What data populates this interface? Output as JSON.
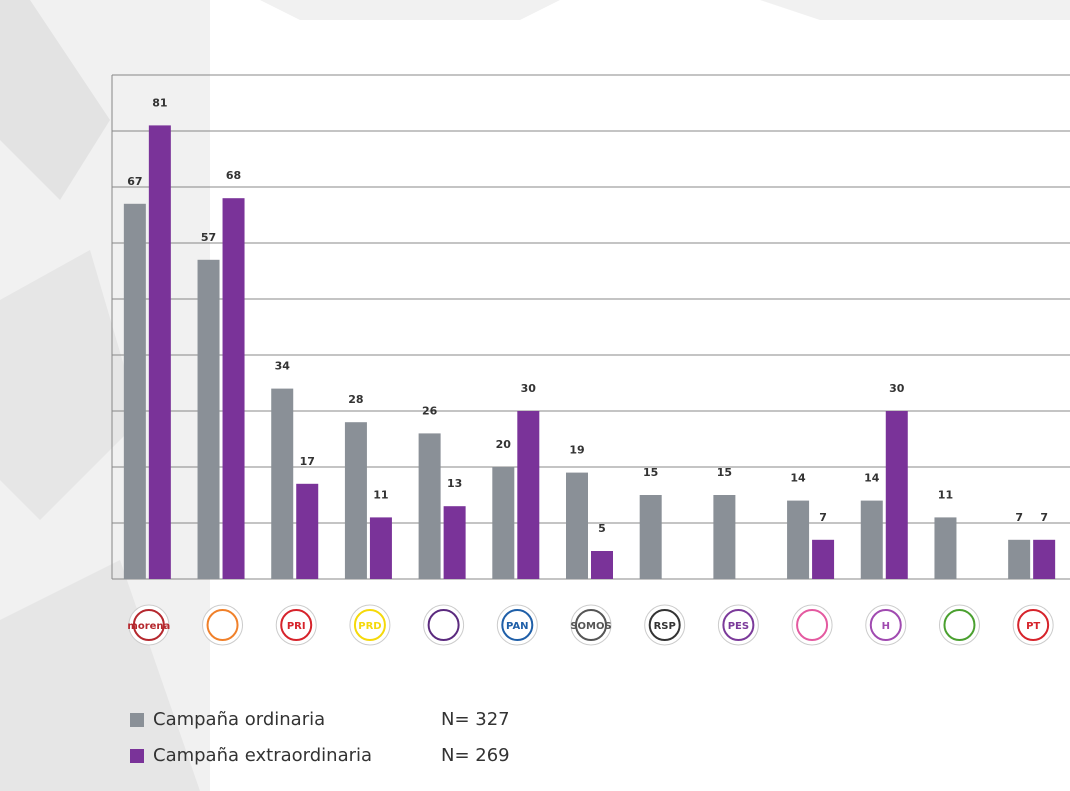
{
  "chart_data": {
    "type": "bar",
    "categories": [
      "morena",
      null,
      "PRI",
      "PRD",
      null,
      "PAN",
      "SOMOS",
      "RSP",
      "PES",
      null,
      "H",
      null,
      "PT"
    ],
    "series": [
      {
        "name": "Campaña ordinaria",
        "color": "#8a9097",
        "note": "N= 327",
        "values": [
          67,
          57,
          34,
          28,
          26,
          20,
          19,
          15,
          15,
          14,
          14,
          11,
          7
        ]
      },
      {
        "name": "Campaña extraordinaria",
        "color": "#7a3399",
        "note": "N= 269",
        "values": [
          81,
          68,
          17,
          11,
          13,
          30,
          5,
          null,
          null,
          7,
          30,
          null,
          7
        ]
      }
    ],
    "ylim": [
      0,
      90
    ],
    "yticks": [
      0,
      10,
      20,
      30,
      40,
      50,
      60,
      70,
      80,
      90
    ],
    "grid": true
  }
}
